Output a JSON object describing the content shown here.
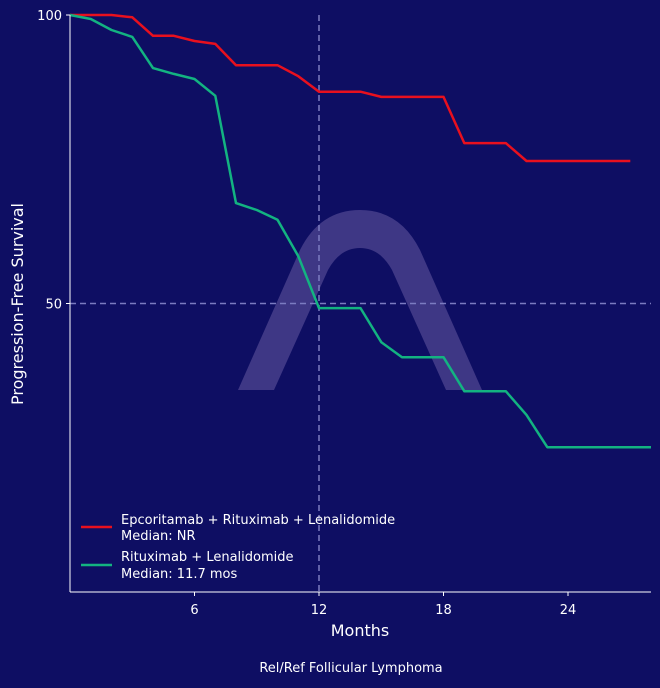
{
  "chart_data": {
    "type": "line",
    "title": "Rel/Ref Follicular Lymphoma",
    "xlabel": "Months",
    "ylabel": "Progression-Free Survival",
    "xlim": [
      0,
      28
    ],
    "ylim": [
      0,
      100
    ],
    "xticks": [
      6,
      12,
      18,
      24
    ],
    "yticks": [
      50,
      100
    ],
    "grid": false,
    "reference_lines": {
      "x": 12,
      "y": 50
    },
    "legend_position": "bottom-left",
    "background_color": "#0e0e63",
    "series": [
      {
        "name": "Epcoritamab + Rituximab + Lenalidomide",
        "median_label": "Median: NR",
        "color": "#e8101e",
        "x": [
          0,
          2,
          3,
          4,
          5,
          6,
          7,
          8,
          9,
          10,
          11,
          12,
          13,
          14,
          15,
          16,
          17,
          18,
          19,
          20,
          21,
          22,
          23,
          24,
          25,
          26,
          27
        ],
        "y": [
          100,
          100,
          99.6,
          96.4,
          96.4,
          95.5,
          95,
          91.3,
          91.3,
          91.3,
          89.4,
          86.7,
          86.7,
          86.7,
          85.8,
          85.8,
          85.8,
          85.8,
          77.8,
          77.8,
          77.8,
          74.7,
          74.7,
          74.7,
          74.7,
          74.7,
          74.7
        ]
      },
      {
        "name": "Rituximab + Lenalidomide",
        "median_label": "Median: 11.7 mos",
        "color": "#13b381",
        "x": [
          0,
          1,
          2,
          3,
          4,
          5,
          6,
          7,
          8,
          9,
          10,
          11,
          12,
          13,
          14,
          15,
          16,
          17,
          18,
          19,
          20,
          21,
          22,
          23,
          24,
          25,
          26,
          27,
          28
        ],
        "y": [
          100,
          99.3,
          97.4,
          96.2,
          90.8,
          89.8,
          88.9,
          86,
          67.4,
          66.2,
          64.5,
          58.2,
          49.2,
          49.2,
          49.2,
          43.3,
          40.7,
          40.7,
          40.7,
          34.8,
          34.8,
          34.8,
          30.7,
          25.1,
          25.1,
          25.1,
          25.1,
          25.1,
          25.1
        ]
      }
    ]
  }
}
